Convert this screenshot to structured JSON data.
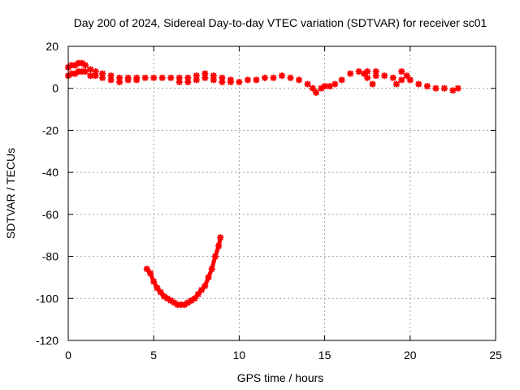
{
  "chart_data": {
    "type": "scatter",
    "title": "Day 200 of 2024, Sidereal Day-to-day VTEC variation (SDTVAR) for receiver sc01",
    "xlabel": "GPS time / hours",
    "ylabel": "SDTVAR / TECUs",
    "xlim": [
      0,
      25
    ],
    "ylim": [
      -120,
      20
    ],
    "xticks": [
      0,
      5,
      10,
      15,
      20,
      25
    ],
    "yticks": [
      20,
      0,
      -20,
      -40,
      -60,
      -80,
      -100,
      -120
    ],
    "grid": true,
    "legend": "none",
    "series": [
      {
        "name": "main",
        "color": "#ff0000",
        "points": [
          [
            0.0,
            10
          ],
          [
            0.0,
            6
          ],
          [
            0.2,
            11
          ],
          [
            0.2,
            7
          ],
          [
            0.4,
            11
          ],
          [
            0.4,
            7
          ],
          [
            0.6,
            12
          ],
          [
            0.6,
            8
          ],
          [
            0.8,
            12
          ],
          [
            0.8,
            8
          ],
          [
            1.0,
            11
          ],
          [
            1.0,
            8
          ],
          [
            1.3,
            9
          ],
          [
            1.3,
            6
          ],
          [
            1.6,
            8
          ],
          [
            1.6,
            6
          ],
          [
            2.0,
            7
          ],
          [
            2.0,
            5
          ],
          [
            2.5,
            6
          ],
          [
            2.5,
            4
          ],
          [
            3.0,
            5
          ],
          [
            3.0,
            3
          ],
          [
            3.5,
            5
          ],
          [
            3.5,
            4
          ],
          [
            4.0,
            5
          ],
          [
            4.0,
            4
          ],
          [
            4.5,
            5
          ],
          [
            5.0,
            5
          ],
          [
            5.5,
            5
          ],
          [
            6.0,
            5
          ],
          [
            6.5,
            5
          ],
          [
            6.5,
            3
          ],
          [
            7.0,
            5
          ],
          [
            7.0,
            3
          ],
          [
            7.5,
            6
          ],
          [
            7.5,
            4
          ],
          [
            8.0,
            7
          ],
          [
            8.0,
            5
          ],
          [
            8.5,
            6
          ],
          [
            8.5,
            4
          ],
          [
            9.0,
            5
          ],
          [
            9.0,
            3
          ],
          [
            9.5,
            4
          ],
          [
            9.5,
            3
          ],
          [
            10.0,
            3
          ],
          [
            10.5,
            4
          ],
          [
            11.0,
            4
          ],
          [
            11.5,
            5
          ],
          [
            12.0,
            5
          ],
          [
            12.5,
            6
          ],
          [
            13.0,
            5
          ],
          [
            13.5,
            4
          ],
          [
            14.0,
            2
          ],
          [
            14.3,
            0
          ],
          [
            14.5,
            -2
          ],
          [
            14.8,
            0
          ],
          [
            15.0,
            1
          ],
          [
            15.3,
            1
          ],
          [
            15.6,
            2
          ],
          [
            16.0,
            4
          ],
          [
            16.5,
            7
          ],
          [
            17.0,
            8
          ],
          [
            17.3,
            7
          ],
          [
            17.5,
            5
          ],
          [
            17.8,
            2
          ],
          [
            17.5,
            8
          ],
          [
            18.0,
            6
          ],
          [
            18.0,
            8
          ],
          [
            18.5,
            6
          ],
          [
            19.0,
            5
          ],
          [
            19.2,
            2
          ],
          [
            19.5,
            4
          ],
          [
            19.5,
            8
          ],
          [
            19.8,
            6
          ],
          [
            20.0,
            4
          ],
          [
            20.5,
            2
          ],
          [
            21.0,
            1
          ],
          [
            21.5,
            0
          ],
          [
            22.0,
            0
          ],
          [
            22.5,
            -1
          ],
          [
            22.8,
            0
          ]
        ]
      },
      {
        "name": "dip",
        "color": "#ff0000",
        "points": [
          [
            4.6,
            -86
          ],
          [
            4.8,
            -88
          ],
          [
            5.0,
            -92
          ],
          [
            5.2,
            -95
          ],
          [
            5.4,
            -97
          ],
          [
            5.6,
            -99
          ],
          [
            5.8,
            -100
          ],
          [
            6.0,
            -101
          ],
          [
            6.2,
            -102
          ],
          [
            6.4,
            -103
          ],
          [
            6.6,
            -103
          ],
          [
            6.8,
            -103
          ],
          [
            7.0,
            -102
          ],
          [
            7.2,
            -101
          ],
          [
            7.4,
            -100
          ],
          [
            7.6,
            -98
          ],
          [
            7.8,
            -96
          ],
          [
            8.0,
            -94
          ],
          [
            8.2,
            -90
          ],
          [
            8.4,
            -86
          ],
          [
            8.6,
            -80
          ],
          [
            8.8,
            -75
          ],
          [
            8.9,
            -71
          ]
        ]
      }
    ]
  }
}
